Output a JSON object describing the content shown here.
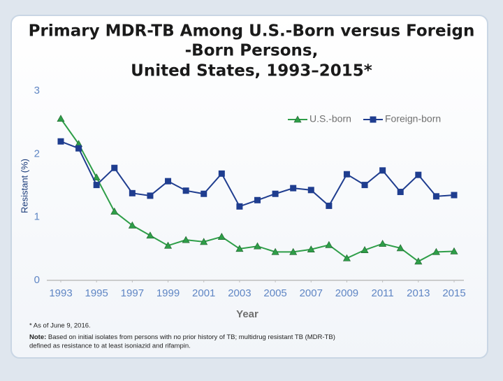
{
  "chart_data": {
    "type": "line",
    "title": [
      "Primary MDR-TB Among U.S.-Born versus Foreign",
      "-Born Persons,",
      "United States, 1993–2015*"
    ],
    "x_label": "Year",
    "y_label": "Resistant (%)",
    "x": [
      1993,
      1994,
      1995,
      1996,
      1997,
      1998,
      1999,
      2000,
      2001,
      2002,
      2003,
      2004,
      2005,
      2006,
      2007,
      2008,
      2009,
      2010,
      2011,
      2012,
      2013,
      2014,
      2015
    ],
    "xlim": [
      1993,
      2015
    ],
    "xticks": [
      1993,
      1995,
      1997,
      1999,
      2001,
      2003,
      2005,
      2007,
      2009,
      2011,
      2013,
      2015
    ],
    "ylim": [
      0,
      3
    ],
    "yticks": [
      0,
      1,
      2,
      3
    ],
    "grid": false,
    "legend": "top-right",
    "series": [
      {
        "name": "U.S.-born",
        "color": "#2e9e48",
        "marker": "triangle",
        "values": [
          2.56,
          2.16,
          1.63,
          1.09,
          0.87,
          0.71,
          0.55,
          0.64,
          0.61,
          0.69,
          0.5,
          0.54,
          0.45,
          0.45,
          0.49,
          0.56,
          0.35,
          0.48,
          0.58,
          0.51,
          0.3,
          0.45,
          0.46
        ]
      },
      {
        "name": "Foreign-born",
        "color": "#1f3d8f",
        "marker": "square",
        "values": [
          2.2,
          2.09,
          1.51,
          1.78,
          1.38,
          1.34,
          1.57,
          1.42,
          1.37,
          1.69,
          1.17,
          1.27,
          1.37,
          1.46,
          1.43,
          1.18,
          1.68,
          1.51,
          1.74,
          1.4,
          1.67,
          1.33,
          1.35
        ]
      }
    ],
    "footnote": "* As of June 9, 2016.",
    "note_label": "Note:",
    "note": "Based on initial isolates from persons with no prior history of TB; multidrug resistant TB (MDR-TB) defined as resistance to at least isoniazid and rifampin."
  }
}
